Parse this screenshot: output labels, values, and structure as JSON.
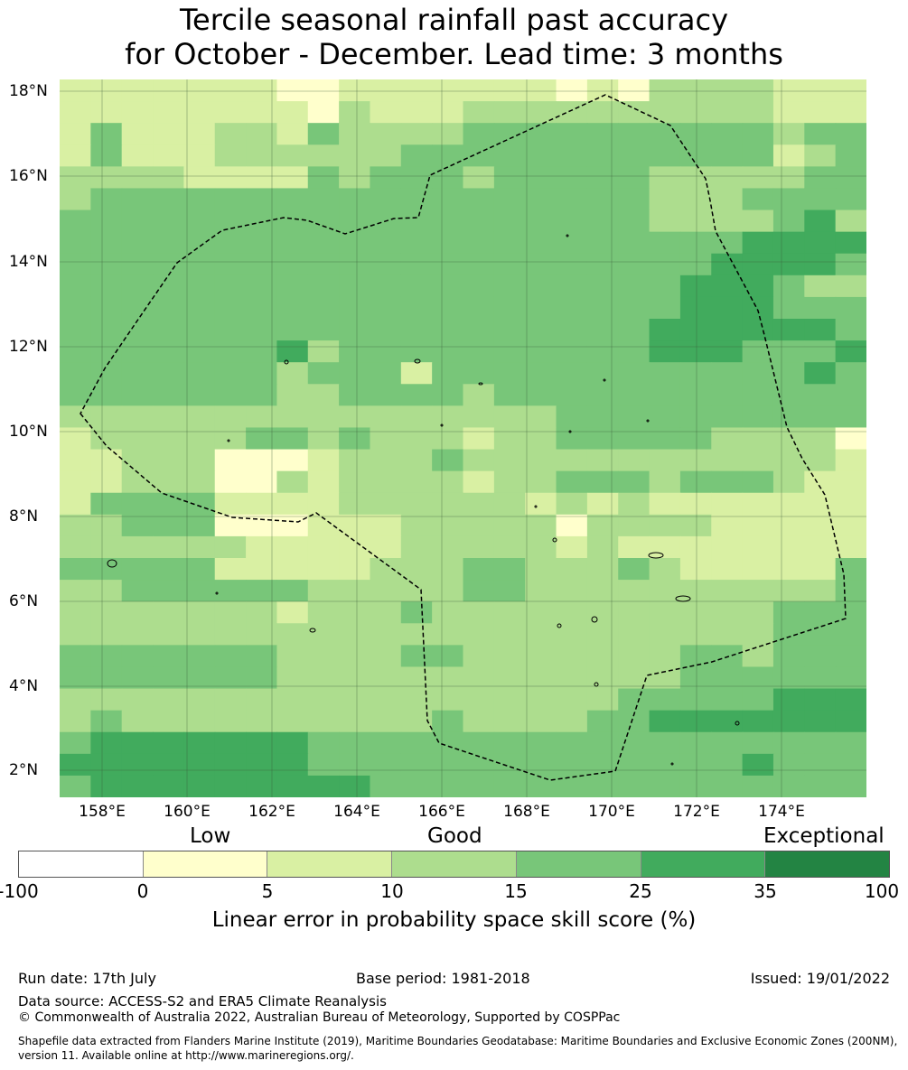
{
  "title_line1": "Tercile seasonal rainfall past accuracy",
  "title_line2": "for October - December. Lead time: 3 months",
  "lat_labels": [
    "18°N",
    "16°N",
    "14°N",
    "12°N",
    "10°N",
    "8°N",
    "6°N",
    "4°N",
    "2°N"
  ],
  "lon_labels": [
    "158°E",
    "160°E",
    "162°E",
    "164°E",
    "166°E",
    "168°E",
    "170°E",
    "172°E",
    "174°E"
  ],
  "colorbar": {
    "category_words": [
      "Low",
      "Good",
      "Exceptional"
    ],
    "ticks": [
      "-100",
      "0",
      "5",
      "10",
      "15",
      "25",
      "35",
      "100"
    ],
    "colors": [
      "#ffffff",
      "#ffffcc",
      "#d9f0a3",
      "#addd8e",
      "#78c679",
      "#41ab5d",
      "#238443"
    ],
    "title": "Linear error in probability space skill score (%)"
  },
  "map_grid": {
    "rows": [
      "22222221122222221213333222",
      "22222222132223333333333222",
      "24222332433334444444444344",
      "24222333333444444444444234",
      "33332222434443444443333344",
      "34444444444444444443334444",
      "44444444444444444443333453",
      "44444444444444444444445555",
      "44444444444444444444455554",
      "44444444444444444444555433",
      "44444444444444444444555444",
      "44444444444444444445555554",
      "44444445344444444445554445",
      "44444443444244444444444454",
      "44444443344443444444444444",
      "33333333333333334444444444",
      "23333344343332334444433331",
      "22333111233343333333333332",
      "22333113233332334443444322",
      "24444222233333323232222222",
      "33444111222333331333322222",
      "33333322222333332322222222",
      "44444222223334433343222224",
      "33444444333334433333333334",
      "33333332333433333333333444",
      "33333333333333333333333444",
      "44444443333443333333443444",
      "44444443333333333333444444",
      "33333333333333333344444555",
      "34333333333343333445555555",
      "45555555444444444444444444",
      "55555555444444444444445444",
      "45555555554444444444444444"
    ]
  },
  "footer": {
    "run_date": "Run date: 17th July",
    "base_period": "Base period: 1981-2018",
    "issued": "Issued: 19/01/2022",
    "data_source": "Data source: ACCESS-S2 and ERA5 Climate Reanalysis",
    "copyright": "© Commonwealth of Australia 2022, Australian Bureau of Meteorology, Supported by COSPPac",
    "shapefile_line1": "Shapefile data extracted from Flanders Marine Institute (2019), Maritime Boundaries Geodatabase: Maritime Boundaries and Exclusive Economic Zones (200NM),",
    "shapefile_line2": "version 11. Available online at http://www.marineregions.org/."
  }
}
